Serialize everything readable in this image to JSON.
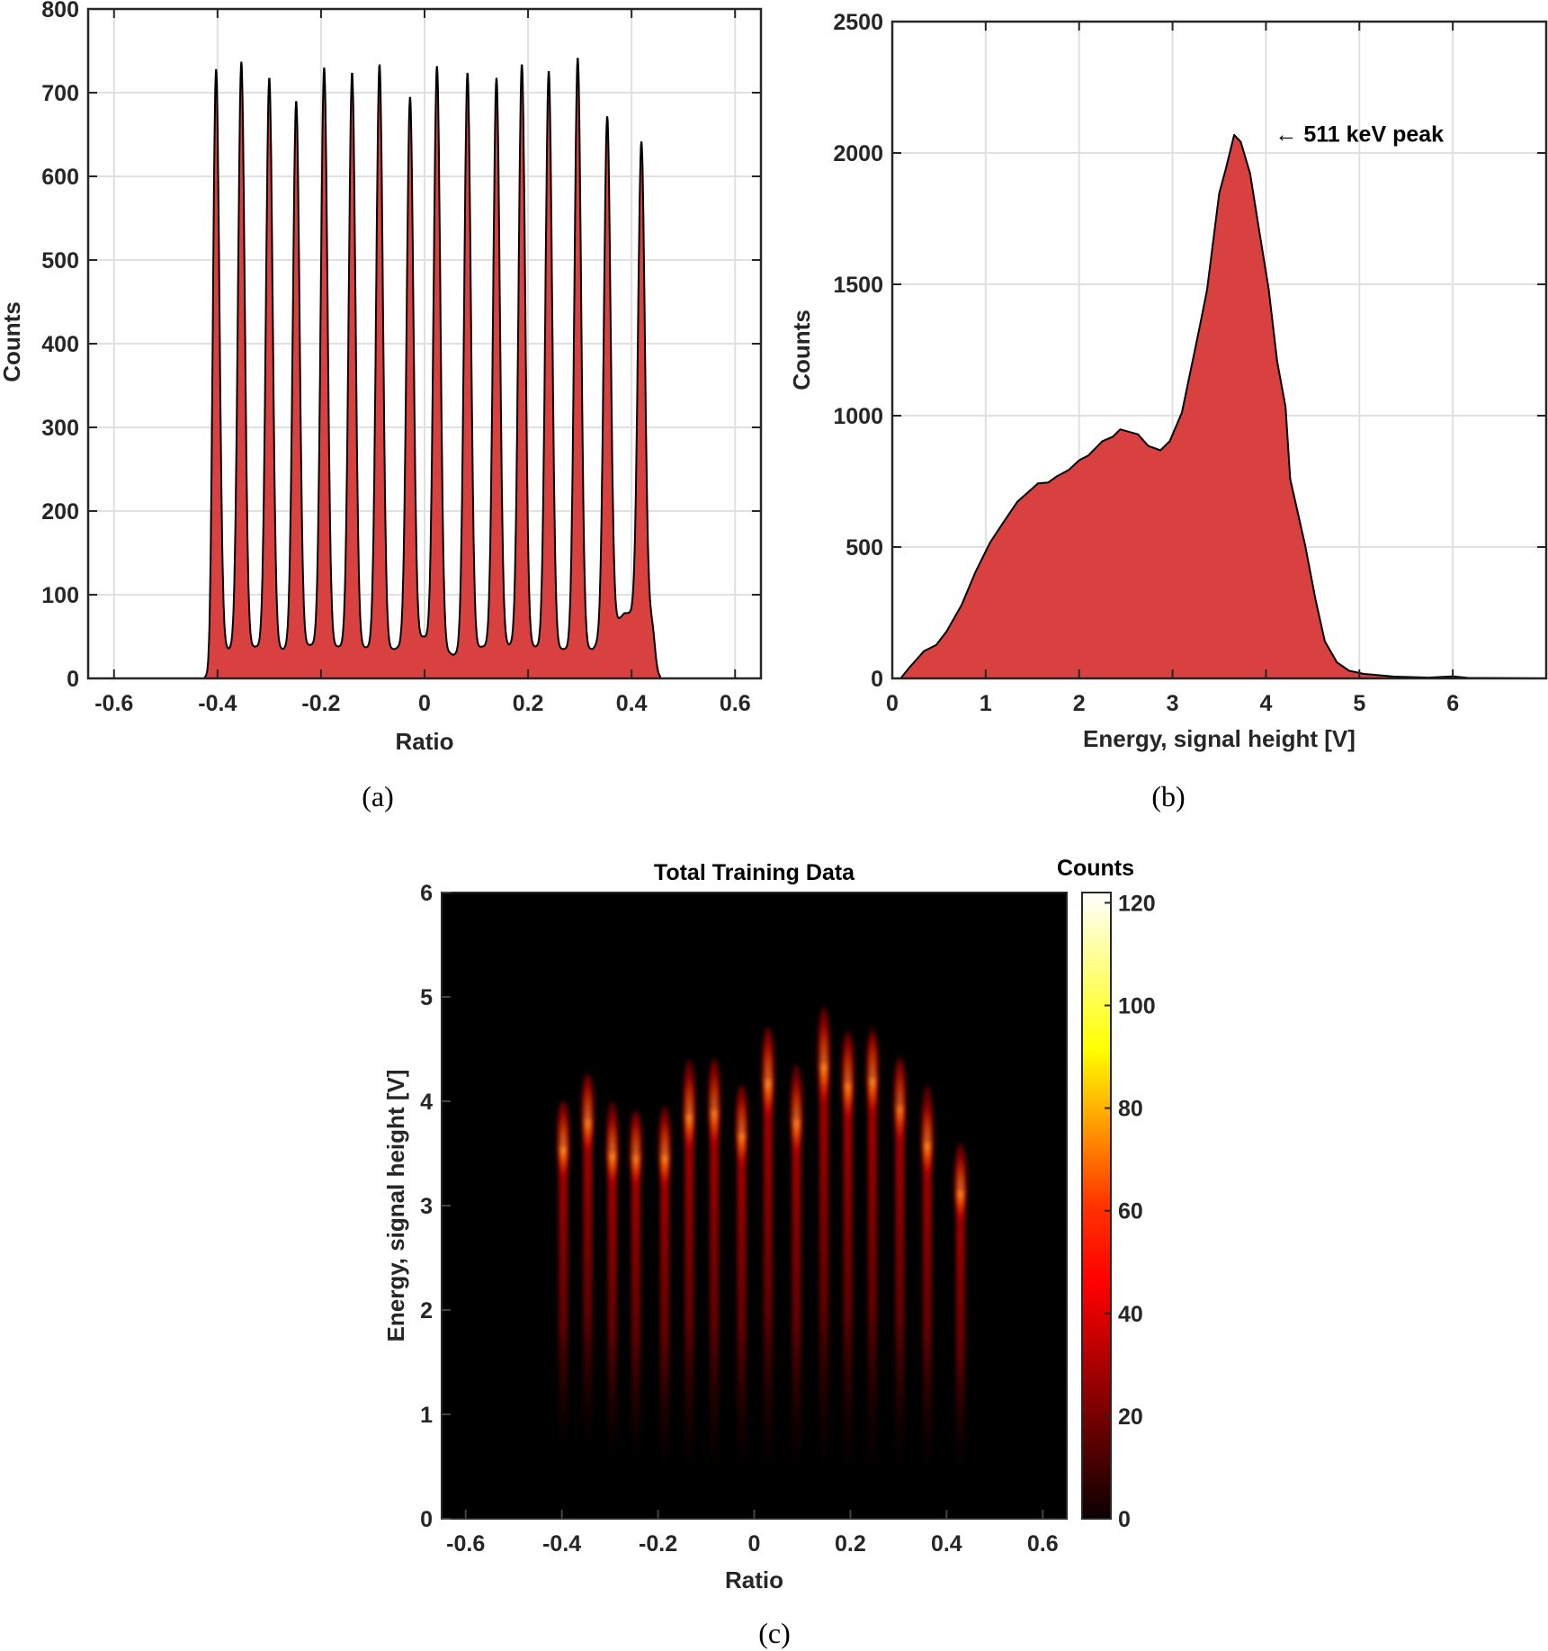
{
  "figure": {
    "captions": [
      "(a)",
      "(b)",
      "(c)"
    ]
  },
  "chart_data": [
    {
      "id": "a",
      "type": "area",
      "title": "",
      "xlabel": "Ratio",
      "ylabel": "Counts",
      "xlim": [
        -0.65,
        0.65
      ],
      "ylim": [
        0,
        800
      ],
      "xticks": [
        -0.6,
        -0.4,
        -0.2,
        0,
        0.2,
        0.4,
        0.6
      ],
      "xtick_labels": [
        "-0.6",
        "-0.4",
        "-0.2",
        "0",
        "0.2",
        "0.4",
        "0.6"
      ],
      "yticks": [
        0,
        100,
        200,
        300,
        400,
        500,
        600,
        700,
        800
      ],
      "ytick_labels": [
        "0",
        "100",
        "200",
        "300",
        "400",
        "500",
        "600",
        "700",
        "800"
      ],
      "grid": true,
      "fill_color": "#d94141",
      "line_color": "#000000",
      "support": [
        -0.425,
        0.455
      ],
      "peaks": [
        {
          "x": -0.403,
          "y": 741
        },
        {
          "x": -0.354,
          "y": 737
        },
        {
          "x": -0.3,
          "y": 718
        },
        {
          "x": -0.248,
          "y": 690
        },
        {
          "x": -0.194,
          "y": 730
        },
        {
          "x": -0.14,
          "y": 724
        },
        {
          "x": -0.087,
          "y": 734
        },
        {
          "x": -0.028,
          "y": 695
        },
        {
          "x": 0.024,
          "y": 732
        },
        {
          "x": 0.083,
          "y": 724
        },
        {
          "x": 0.139,
          "y": 718
        },
        {
          "x": 0.188,
          "y": 734
        },
        {
          "x": 0.24,
          "y": 726
        },
        {
          "x": 0.296,
          "y": 742
        },
        {
          "x": 0.353,
          "y": 672
        },
        {
          "x": 0.419,
          "y": 642
        }
      ],
      "valleys": [
        {
          "x": -0.378,
          "y": 35
        },
        {
          "x": -0.326,
          "y": 38
        },
        {
          "x": -0.273,
          "y": 35
        },
        {
          "x": -0.22,
          "y": 40
        },
        {
          "x": -0.166,
          "y": 38
        },
        {
          "x": -0.113,
          "y": 37
        },
        {
          "x": -0.058,
          "y": 35
        },
        {
          "x": -0.002,
          "y": 50
        },
        {
          "x": 0.055,
          "y": 28
        },
        {
          "x": 0.111,
          "y": 38
        },
        {
          "x": 0.164,
          "y": 40
        },
        {
          "x": 0.214,
          "y": 38
        },
        {
          "x": 0.268,
          "y": 35
        },
        {
          "x": 0.325,
          "y": 35
        },
        {
          "x": 0.386,
          "y": 78
        }
      ]
    },
    {
      "id": "b",
      "type": "area",
      "title": "",
      "xlabel": "Energy, signal height [V]",
      "ylabel": "Counts",
      "xlim": [
        0,
        7
      ],
      "ylim": [
        0,
        2500
      ],
      "xticks": [
        0,
        1,
        2,
        3,
        4,
        5,
        6
      ],
      "xtick_labels": [
        "0",
        "1",
        "2",
        "3",
        "4",
        "5",
        "6"
      ],
      "yticks": [
        0,
        500,
        1000,
        1500,
        2000,
        2500
      ],
      "ytick_labels": [
        "0",
        "500",
        "1000",
        "1500",
        "2000",
        "2500"
      ],
      "grid": true,
      "fill_color": "#d94141",
      "line_color": "#000000",
      "annotation": {
        "text": "← 511 keV peak",
        "x": 4.0,
        "y": 2070
      },
      "x": [
        0.09,
        0.18,
        0.34,
        0.47,
        0.58,
        0.74,
        0.89,
        1.05,
        1.21,
        1.34,
        1.56,
        1.67,
        1.76,
        1.89,
        2.0,
        2.1,
        2.25,
        2.36,
        2.44,
        2.63,
        2.74,
        2.87,
        2.97,
        3.1,
        3.29,
        3.37,
        3.5,
        3.57,
        3.66,
        3.73,
        3.83,
        3.92,
        4.03,
        4.12,
        4.21,
        4.26,
        4.42,
        4.53,
        4.63,
        4.76,
        4.89,
        5.05,
        5.37,
        5.74,
        6.0,
        6.16,
        7.0
      ],
      "y": [
        0,
        40,
        104,
        127,
        178,
        278,
        404,
        519,
        605,
        673,
        742,
        746,
        769,
        794,
        830,
        849,
        903,
        920,
        948,
        929,
        885,
        868,
        903,
        1012,
        1337,
        1480,
        1847,
        1939,
        2069,
        2042,
        1922,
        1722,
        1481,
        1206,
        1034,
        759,
        507,
        301,
        141,
        61,
        29,
        17,
        7,
        3,
        8,
        2,
        0
      ]
    },
    {
      "id": "c",
      "type": "heatmap",
      "title": "Total Training Data",
      "xlabel": "Ratio",
      "ylabel": "Energy, signal height [V]",
      "xlim": [
        -0.65,
        0.65
      ],
      "ylim": [
        0,
        6
      ],
      "xticks": [
        -0.6,
        -0.4,
        -0.2,
        0,
        0.2,
        0.4,
        0.6
      ],
      "xtick_labels": [
        "-0.6",
        "-0.4",
        "-0.2",
        "0",
        "0.2",
        "0.4",
        "0.6"
      ],
      "yticks": [
        0,
        1,
        2,
        3,
        4,
        5,
        6
      ],
      "ytick_labels": [
        "0",
        "1",
        "2",
        "3",
        "4",
        "5",
        "6"
      ],
      "colormap": "hot",
      "colorbar": {
        "label": "Counts",
        "clim": [
          0,
          122
        ],
        "ticks": [
          0,
          20,
          40,
          60,
          80,
          100,
          120
        ],
        "tick_labels": [
          "0",
          "20",
          "40",
          "60",
          "80",
          "100",
          "120"
        ]
      },
      "streaks": [
        {
          "ratio": -0.397,
          "peak_energy": 3.6,
          "top": 3.95,
          "bottom": 0.7,
          "peak_counts": 95
        },
        {
          "ratio": -0.346,
          "peak_energy": 3.86,
          "top": 4.2,
          "bottom": 0.7,
          "peak_counts": 80
        },
        {
          "ratio": -0.295,
          "peak_energy": 3.54,
          "top": 3.95,
          "bottom": 0.6,
          "peak_counts": 92
        },
        {
          "ratio": -0.246,
          "peak_energy": 3.52,
          "top": 3.85,
          "bottom": 0.6,
          "peak_counts": 75
        },
        {
          "ratio": -0.186,
          "peak_energy": 3.52,
          "top": 3.9,
          "bottom": 0.5,
          "peak_counts": 85
        },
        {
          "ratio": -0.135,
          "peak_energy": 3.91,
          "top": 4.35,
          "bottom": 0.5,
          "peak_counts": 82
        },
        {
          "ratio": -0.083,
          "peak_energy": 3.95,
          "top": 4.35,
          "bottom": 0.5,
          "peak_counts": 70
        },
        {
          "ratio": -0.026,
          "peak_energy": 3.73,
          "top": 4.1,
          "bottom": 0.5,
          "peak_counts": 78
        },
        {
          "ratio": 0.029,
          "peak_energy": 4.24,
          "top": 4.65,
          "bottom": 0.5,
          "peak_counts": 85
        },
        {
          "ratio": 0.088,
          "peak_energy": 3.86,
          "top": 4.3,
          "bottom": 0.5,
          "peak_counts": 78
        },
        {
          "ratio": 0.145,
          "peak_energy": 4.39,
          "top": 4.85,
          "bottom": 0.5,
          "peak_counts": 82
        },
        {
          "ratio": 0.195,
          "peak_energy": 4.21,
          "top": 4.6,
          "bottom": 0.5,
          "peak_counts": 75
        },
        {
          "ratio": 0.246,
          "peak_energy": 4.26,
          "top": 4.6,
          "bottom": 0.5,
          "peak_counts": 78
        },
        {
          "ratio": 0.303,
          "peak_energy": 3.99,
          "top": 4.35,
          "bottom": 0.5,
          "peak_counts": 60
        },
        {
          "ratio": 0.36,
          "peak_energy": 3.64,
          "top": 4.1,
          "bottom": 0.5,
          "peak_counts": 82
        },
        {
          "ratio": 0.429,
          "peak_energy": 3.18,
          "top": 3.55,
          "bottom": 0.5,
          "peak_counts": 90
        }
      ]
    }
  ]
}
